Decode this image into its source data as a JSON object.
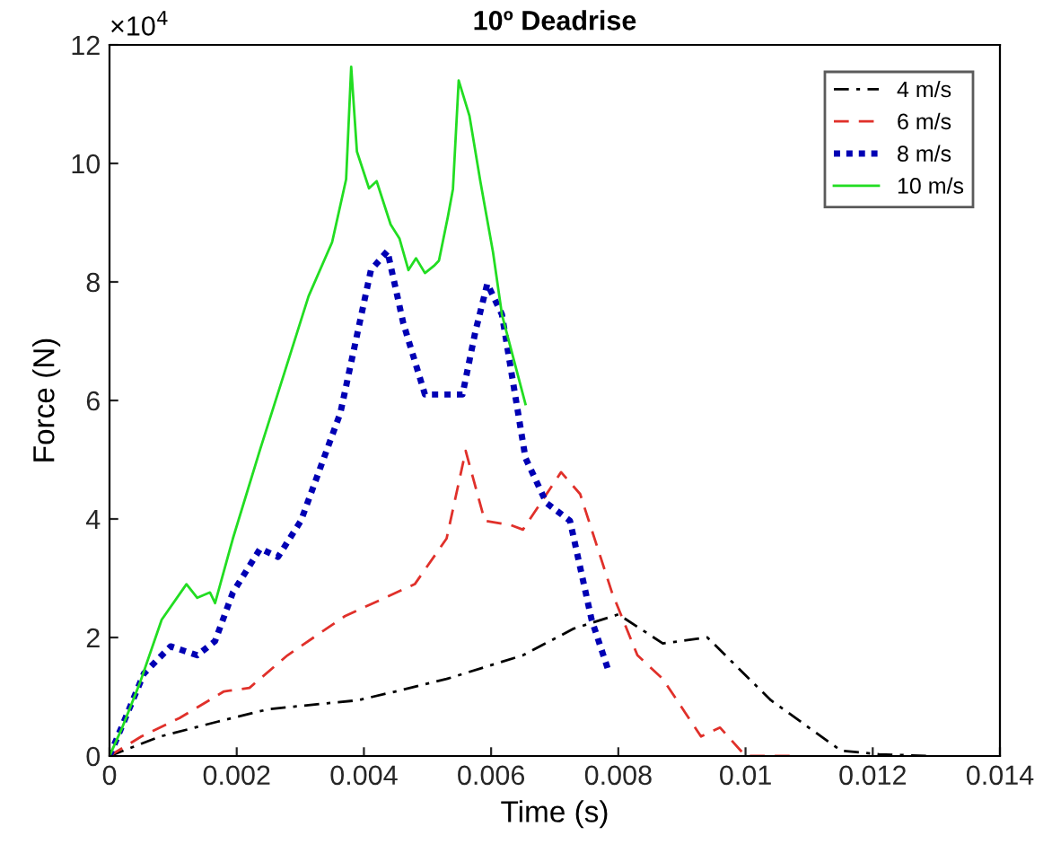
{
  "chart_data": {
    "type": "line",
    "title": "10º Deadrise",
    "xlabel": "Time (s)",
    "ylabel": "Force (N)",
    "annotations": [
      "×10$^{4}$"
    ],
    "xlim": [
      0,
      0.014
    ],
    "xticks": [
      0,
      0.002,
      0.004,
      0.006,
      0.008,
      0.01,
      0.012,
      0.014
    ],
    "ylim": [
      0,
      12
    ],
    "yticks": [
      0,
      2,
      4,
      6,
      8,
      10,
      12
    ],
    "grid": false,
    "legend": "top right",
    "marker": "none",
    "series": [
      {
        "name": "4 m/s",
        "color": "#000000",
        "line_style": "dashdot",
        "x": [
          0,
          0.0008,
          0.0017,
          0.0025,
          0.0039,
          0.0045,
          0.0053,
          0.0065,
          0.0073,
          0.008,
          0.0087,
          0.0094,
          0.0104,
          0.0115,
          0.0121,
          0.0129
        ],
        "values": [
          0,
          0.33,
          0.58,
          0.79,
          0.94,
          1.09,
          1.3,
          1.7,
          2.15,
          2.39,
          1.9,
          2.0,
          0.94,
          0.09,
          0.03,
          0
        ]
      },
      {
        "name": "6 m/s",
        "color": "#e0302a",
        "line_style": "dashed",
        "x": [
          0,
          0.0005,
          0.0011,
          0.0018,
          0.0022,
          0.0028,
          0.0037,
          0.0048,
          0.0053,
          0.0056,
          0.0059,
          0.0063,
          0.0065,
          0.0071,
          0.0074,
          0.0079,
          0.0083,
          0.0087,
          0.0093,
          0.0096,
          0.01,
          0.0107
        ],
        "values": [
          0,
          0.33,
          0.64,
          1.09,
          1.15,
          1.7,
          2.36,
          2.9,
          3.67,
          5.15,
          3.97,
          3.9,
          3.82,
          4.79,
          4.42,
          2.76,
          1.7,
          1.3,
          0.33,
          0.48,
          0,
          0
        ]
      },
      {
        "name": "8 m/s",
        "color": "#0000b4",
        "line_style": "dotted",
        "x": [
          0,
          0.00025,
          0.00054,
          0.00096,
          0.00138,
          0.00166,
          0.00194,
          0.00237,
          0.00265,
          0.00301,
          0.00363,
          0.00411,
          0.00437,
          0.00462,
          0.00496,
          0.00555,
          0.00575,
          0.00594,
          0.00617,
          0.00654,
          0.00687,
          0.00724,
          0.00758,
          0.00786
        ],
        "values": [
          0,
          0.64,
          1.39,
          1.85,
          1.7,
          1.94,
          2.76,
          3.5,
          3.36,
          3.97,
          5.79,
          8.2,
          8.52,
          7.3,
          6.1,
          6.1,
          7.15,
          7.97,
          7.45,
          5.03,
          4.27,
          3.97,
          2.3,
          1.39
        ]
      },
      {
        "name": "10 m/s",
        "color": "#22dd22",
        "line_style": "solid",
        "x": [
          0,
          0.0002,
          0.00048,
          0.00082,
          0.00121,
          0.00138,
          0.00158,
          0.00166,
          0.00194,
          0.00237,
          0.00273,
          0.00313,
          0.0035,
          0.00372,
          0.0038,
          0.00389,
          0.00408,
          0.0042,
          0.00442,
          0.00456,
          0.0047,
          0.00482,
          0.00496,
          0.0051,
          0.00518,
          0.00532,
          0.0054,
          0.00549,
          0.00566,
          0.00583,
          0.00603,
          0.00617,
          0.00654
        ],
        "values": [
          0,
          0.48,
          1.24,
          2.3,
          2.9,
          2.67,
          2.76,
          2.58,
          3.67,
          5.18,
          6.4,
          7.76,
          8.67,
          9.73,
          11.63,
          10.2,
          9.58,
          9.7,
          8.97,
          8.73,
          8.2,
          8.4,
          8.15,
          8.27,
          8.36,
          9.1,
          9.57,
          11.4,
          10.8,
          9.7,
          8.5,
          7.45,
          5.94
        ]
      }
    ]
  }
}
